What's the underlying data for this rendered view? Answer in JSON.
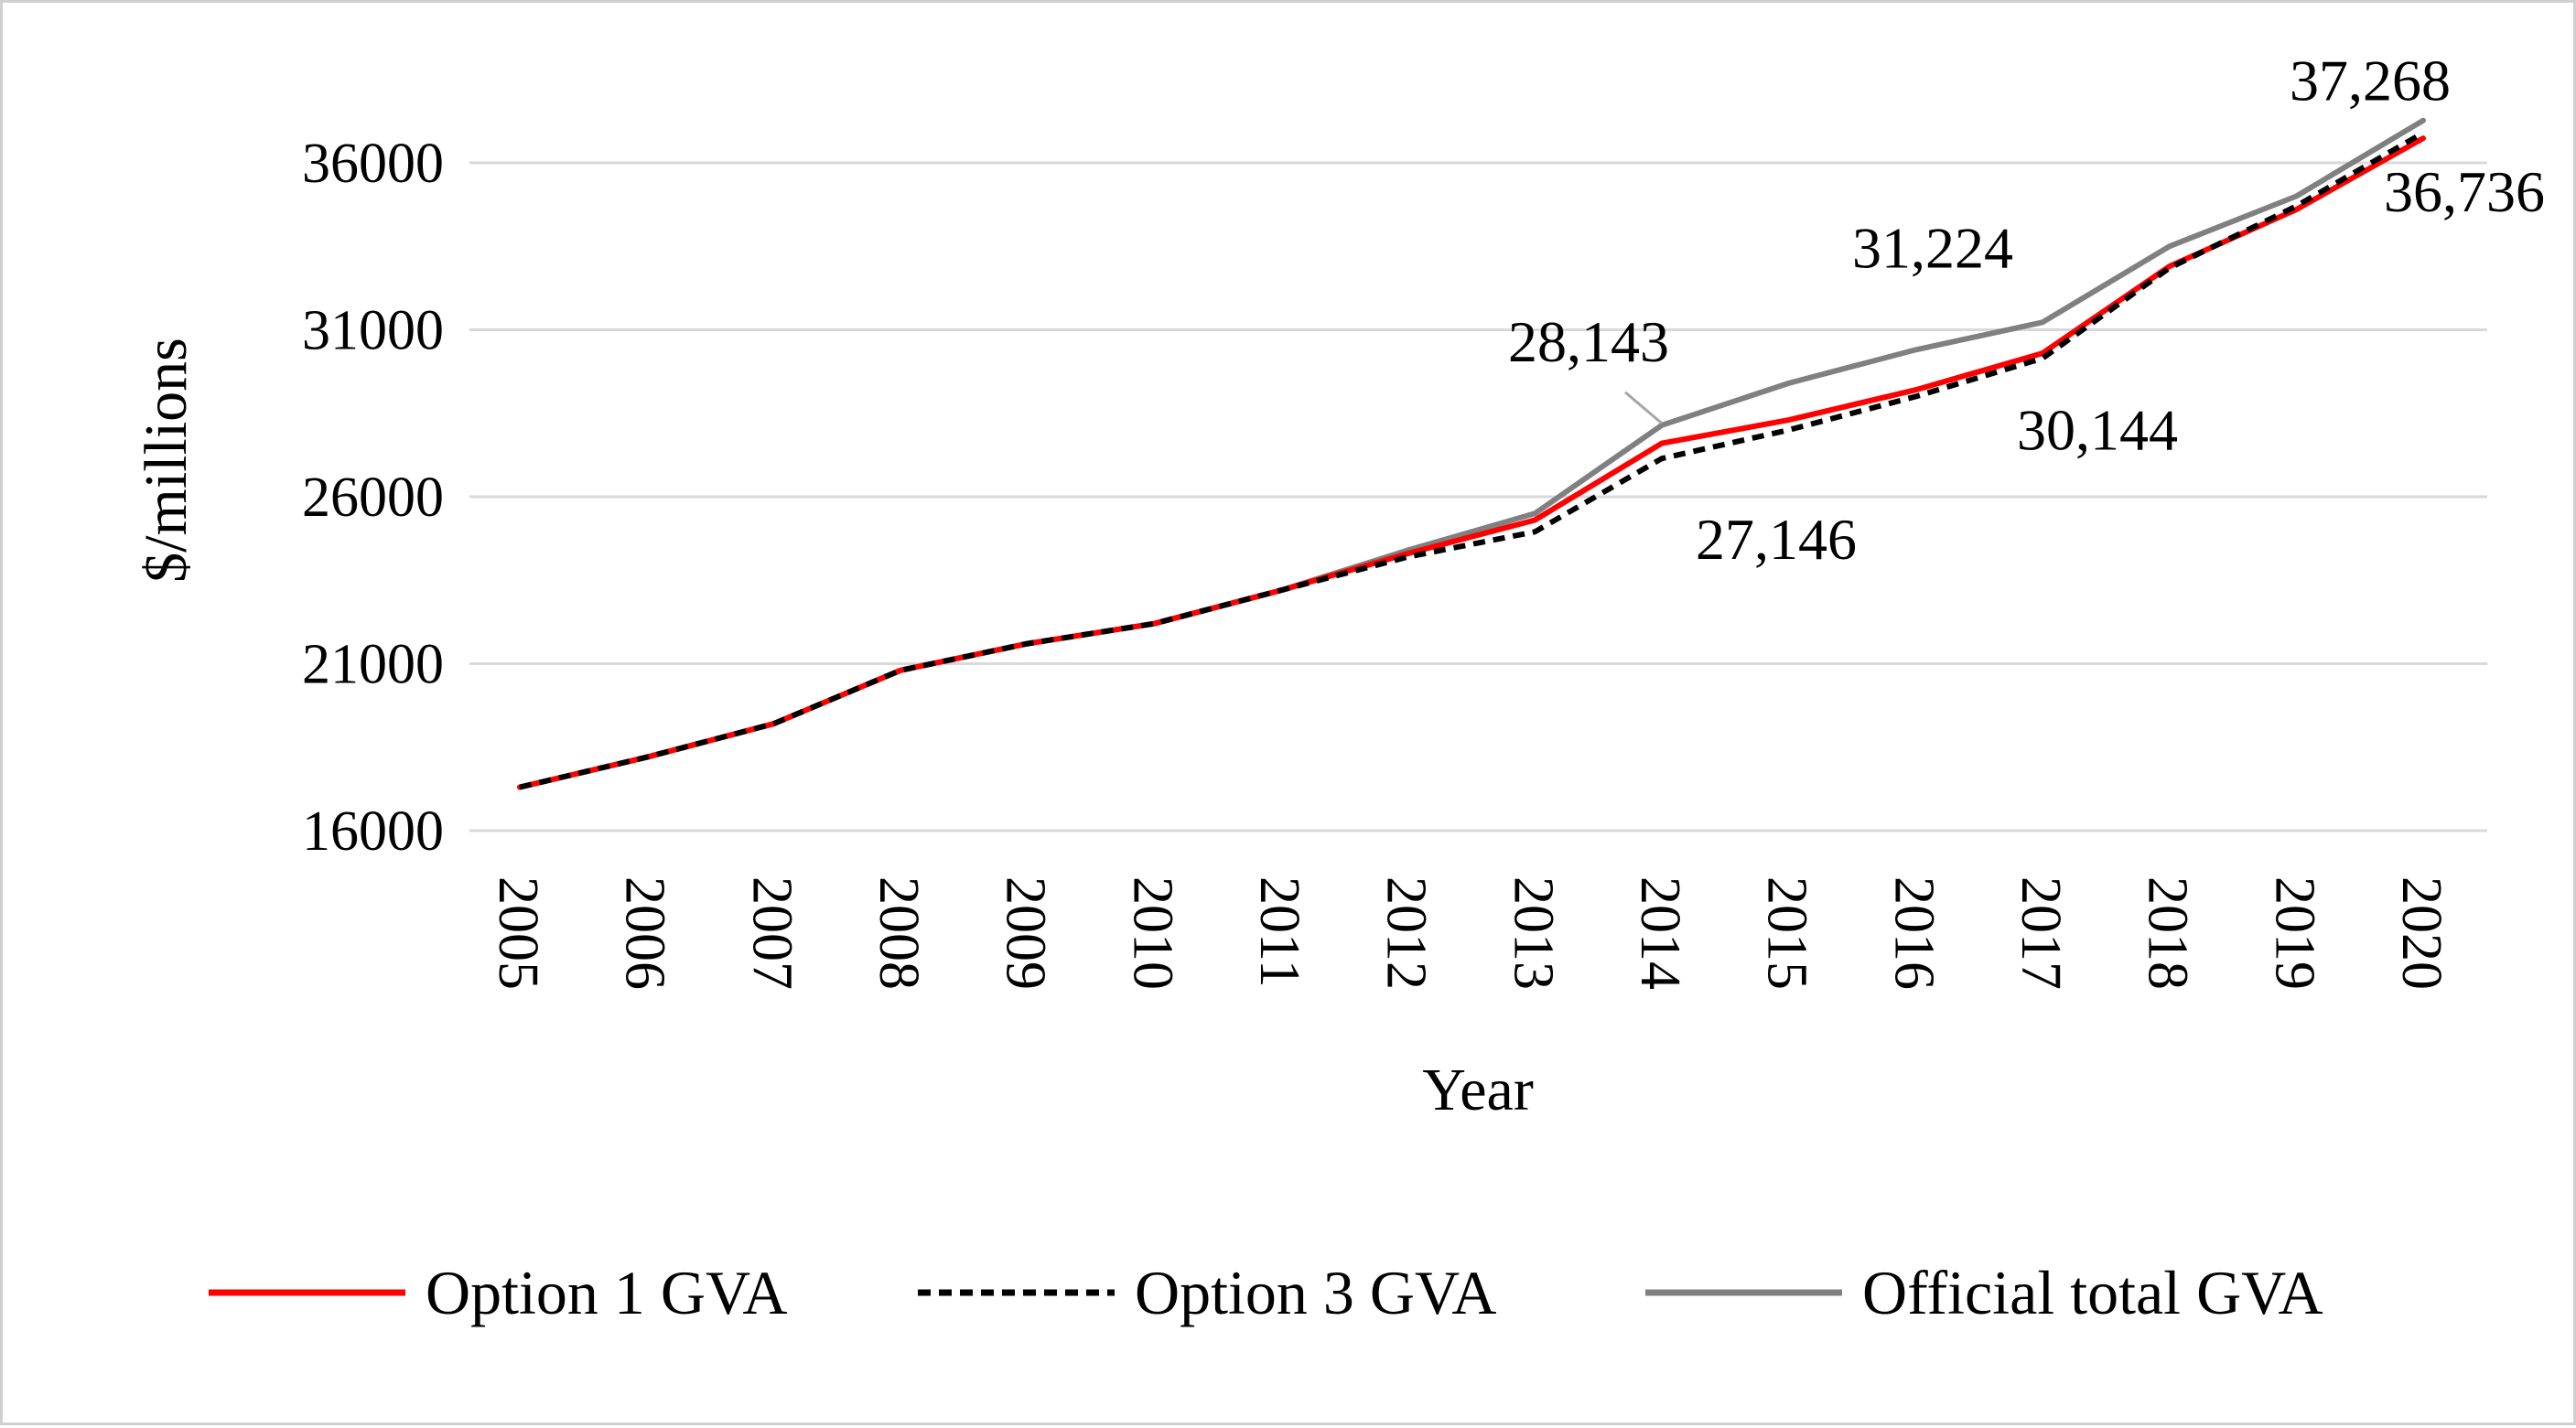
{
  "chart_data": {
    "type": "line",
    "title": "",
    "xlabel": "Year",
    "ylabel": "$/millions",
    "ylim": [
      16000,
      36000
    ],
    "yticks": [
      16000,
      21000,
      26000,
      31000,
      36000
    ],
    "categories": [
      "2005",
      "2006",
      "2007",
      "2008",
      "2009",
      "2010",
      "2011",
      "2012",
      "2013",
      "2014",
      "2015",
      "2016",
      "2017",
      "2018",
      "2019",
      "2020"
    ],
    "grid": true,
    "legend_position": "bottom",
    "series": [
      {
        "name": "Option 1 GVA",
        "color": "#ff0000",
        "style": "solid",
        "values": [
          17300,
          18200,
          19200,
          20800,
          21600,
          22200,
          23200,
          24300,
          25300,
          27600,
          28300,
          29200,
          30300,
          32900,
          34600,
          36736
        ]
      },
      {
        "name": "Option 3 GVA",
        "color": "#000000",
        "style": "dashed",
        "values": [
          17300,
          18200,
          19200,
          20800,
          21600,
          22200,
          23200,
          24200,
          24950,
          27146,
          28000,
          29000,
          30144,
          32850,
          34700,
          36900
        ]
      },
      {
        "name": "Official total GVA",
        "color": "#808080",
        "style": "solid",
        "values": [
          17300,
          18200,
          19200,
          20800,
          21600,
          22200,
          23200,
          24400,
          25500,
          28143,
          29400,
          30400,
          31224,
          33500,
          35000,
          37268
        ]
      }
    ],
    "annotations": [
      {
        "text": "28,143",
        "series": 2,
        "index": 9,
        "position": "above-left",
        "leader": true
      },
      {
        "text": "27,146",
        "series": 1,
        "index": 9,
        "position": "below-right"
      },
      {
        "text": "31,224",
        "series": 2,
        "index": 12,
        "position": "above-left"
      },
      {
        "text": "30,144",
        "series": 1,
        "index": 12,
        "position": "below"
      },
      {
        "text": "37,268",
        "series": 2,
        "index": 15,
        "position": "above-left"
      },
      {
        "text": "36,736",
        "series": 0,
        "index": 15,
        "position": "below"
      }
    ]
  }
}
